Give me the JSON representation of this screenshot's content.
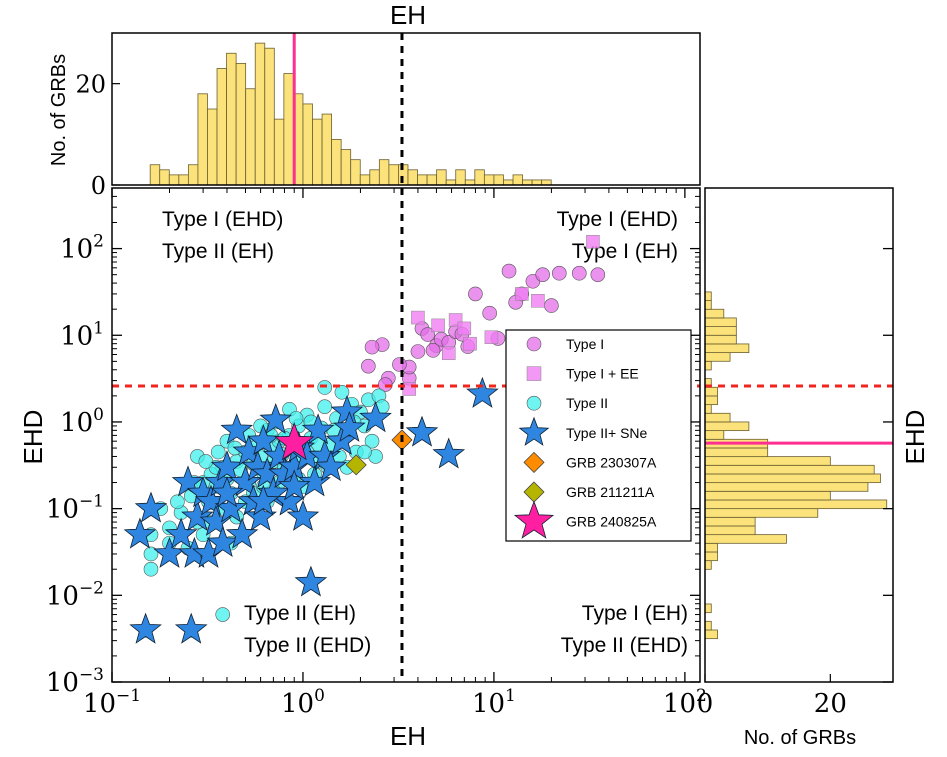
{
  "chart_data": {
    "type": "scatter",
    "title": "EH",
    "xlabel": "EH",
    "ylabel": "EHD",
    "xscale": "log",
    "yscale": "log",
    "xlim": [
      0.1,
      120
    ],
    "ylim": [
      0.001,
      500
    ],
    "x_ticks": [
      {
        "v": 0.1,
        "base": "10",
        "exp": "−1"
      },
      {
        "v": 1,
        "base": "10",
        "exp": "0"
      },
      {
        "v": 10,
        "base": "10",
        "exp": "1"
      },
      {
        "v": 100,
        "base": "10",
        "exp": "2"
      }
    ],
    "y_ticks": [
      {
        "v": 0.001,
        "base": "10",
        "exp": "−3"
      },
      {
        "v": 0.01,
        "base": "10",
        "exp": "−2"
      },
      {
        "v": 0.1,
        "base": "10",
        "exp": "−1"
      },
      {
        "v": 1,
        "base": "10",
        "exp": "0"
      },
      {
        "v": 10,
        "base": "10",
        "exp": "1"
      },
      {
        "v": 100,
        "base": "10",
        "exp": "2"
      }
    ],
    "thresholds": {
      "eh": 3.3,
      "ehd": 2.6,
      "grb240825a_eh": 0.9,
      "grb240825a_ehd": 0.57
    },
    "quadrant_labels": [
      {
        "id": "tl",
        "lines": [
          "Type I (EHD)",
          "Type II (EH)"
        ]
      },
      {
        "id": "tr",
        "lines": [
          "Type I (EHD)",
          "Type I (EH)"
        ]
      },
      {
        "id": "bl",
        "lines": [
          "Type II (EH)",
          "Type II (EHD)"
        ]
      },
      {
        "id": "br",
        "lines": [
          "Type I (EH)",
          "Type II (EHD)"
        ]
      }
    ],
    "series": [
      {
        "name": "Type I",
        "marker": "circle",
        "color": "#e36ee8",
        "points": [
          [
            3.6,
            3.2
          ],
          [
            4.2,
            12
          ],
          [
            4.5,
            10.2
          ],
          [
            5.0,
            7.6
          ],
          [
            5.3,
            9.0
          ],
          [
            5.8,
            8.3
          ],
          [
            6.3,
            11
          ],
          [
            6.8,
            10.3
          ],
          [
            7.3,
            7.4
          ],
          [
            8.0,
            30
          ],
          [
            9.5,
            18
          ],
          [
            10.5,
            9.2
          ],
          [
            12,
            55
          ],
          [
            14,
            30
          ],
          [
            16,
            42
          ],
          [
            18,
            50
          ],
          [
            22,
            52
          ],
          [
            28,
            52
          ],
          [
            35,
            50
          ],
          [
            20,
            22
          ],
          [
            13,
            24
          ],
          [
            4.0,
            6.5
          ],
          [
            3.6,
            4.3
          ],
          [
            3.2,
            4.6
          ],
          [
            2.8,
            3.2
          ],
          [
            2.6,
            7.8
          ],
          [
            2.3,
            7.3
          ],
          [
            2.2,
            4.4
          ],
          [
            2.7,
            2.7
          ],
          [
            4.8,
            6.7
          ]
        ]
      },
      {
        "name": "Type I + EE",
        "marker": "square",
        "color": "#f07ef2",
        "points": [
          [
            33,
            120
          ],
          [
            4.0,
            16
          ],
          [
            5.1,
            13
          ],
          [
            5.8,
            6.2
          ],
          [
            6.3,
            15
          ],
          [
            7.0,
            12
          ],
          [
            7.5,
            8.0
          ],
          [
            9.7,
            9.5
          ],
          [
            17,
            25
          ],
          [
            14,
            30
          ],
          [
            3.6,
            2.4
          ]
        ]
      },
      {
        "name": "Type II",
        "marker": "circle",
        "color": "#40f0ee",
        "points": [
          [
            0.16,
            0.05
          ],
          [
            0.16,
            0.03
          ],
          [
            0.16,
            0.02
          ],
          [
            0.2,
            0.06
          ],
          [
            0.23,
            0.09
          ],
          [
            0.26,
            0.14
          ],
          [
            0.28,
            0.07
          ],
          [
            0.3,
            0.2
          ],
          [
            0.32,
            0.12
          ],
          [
            0.33,
            0.25
          ],
          [
            0.35,
            0.18
          ],
          [
            0.37,
            0.1
          ],
          [
            0.38,
            0.3
          ],
          [
            0.4,
            0.22
          ],
          [
            0.42,
            0.15
          ],
          [
            0.45,
            0.35
          ],
          [
            0.47,
            0.28
          ],
          [
            0.5,
            0.45
          ],
          [
            0.52,
            0.2
          ],
          [
            0.55,
            0.33
          ],
          [
            0.58,
            0.55
          ],
          [
            0.6,
            0.4
          ],
          [
            0.62,
            0.26
          ],
          [
            0.65,
            0.8
          ],
          [
            0.68,
            0.5
          ],
          [
            0.7,
            0.35
          ],
          [
            0.72,
            1.0
          ],
          [
            0.75,
            0.6
          ],
          [
            0.78,
            0.42
          ],
          [
            0.8,
            0.3
          ],
          [
            0.85,
            0.7
          ],
          [
            0.9,
            0.5
          ],
          [
            0.95,
            0.9
          ],
          [
            1.0,
            0.4
          ],
          [
            1.05,
            1.2
          ],
          [
            1.1,
            0.65
          ],
          [
            1.2,
            0.35
          ],
          [
            1.25,
            0.85
          ],
          [
            1.3,
            1.5
          ],
          [
            1.4,
            0.55
          ],
          [
            1.5,
            1.1
          ],
          [
            1.55,
            0.4
          ],
          [
            1.6,
            2.2
          ],
          [
            1.7,
            0.7
          ],
          [
            1.8,
            1.6
          ],
          [
            1.9,
            0.45
          ],
          [
            2.0,
            1.3
          ],
          [
            2.1,
            0.9
          ],
          [
            2.2,
            1.8
          ],
          [
            2.3,
            0.6
          ],
          [
            2.5,
            2.0
          ],
          [
            2.6,
            1.5
          ],
          [
            1.3,
            2.5
          ],
          [
            0.38,
            0.006
          ],
          [
            0.22,
            0.12
          ],
          [
            0.3,
            0.05
          ],
          [
            0.45,
            0.08
          ],
          [
            0.55,
            0.15
          ],
          [
            0.65,
            0.12
          ],
          [
            0.75,
            0.2
          ],
          [
            0.95,
            0.22
          ],
          [
            1.15,
            0.25
          ],
          [
            0.28,
            0.4
          ],
          [
            0.25,
            0.035
          ],
          [
            0.2,
            0.04
          ],
          [
            0.18,
            0.1
          ],
          [
            0.4,
            0.6
          ],
          [
            0.52,
            0.7
          ],
          [
            0.6,
            0.9
          ],
          [
            1.7,
            0.3
          ],
          [
            2.4,
            0.4
          ],
          [
            0.85,
            1.4
          ],
          [
            1.0,
            0.18
          ],
          [
            0.35,
            0.3
          ],
          [
            0.33,
            0.07
          ],
          [
            0.44,
            0.5
          ],
          [
            0.5,
            0.12
          ],
          [
            0.7,
            0.16
          ],
          [
            0.88,
            0.3
          ],
          [
            1.2,
            0.55
          ],
          [
            1.45,
            0.8
          ],
          [
            1.85,
            1.0
          ],
          [
            0.62,
            0.18
          ],
          [
            0.42,
            0.04
          ],
          [
            0.36,
            0.45
          ],
          [
            2.1,
            0.45
          ],
          [
            0.8,
            0.65
          ],
          [
            1.1,
            1.0
          ],
          [
            1.3,
            0.4
          ],
          [
            1.6,
            0.6
          ],
          [
            0.27,
            0.2
          ],
          [
            0.31,
            0.35
          ],
          [
            0.58,
            0.3
          ],
          [
            0.68,
            0.7
          ],
          [
            0.92,
            1.1
          ],
          [
            1.05,
            0.45
          ],
          [
            1.35,
            0.3
          ]
        ]
      },
      {
        "name": "Type II+ SNe",
        "marker": "star",
        "color": "#2e86e0",
        "points": [
          [
            0.14,
            0.05
          ],
          [
            0.16,
            0.1
          ],
          [
            0.15,
            0.004
          ],
          [
            0.2,
            0.03
          ],
          [
            0.23,
            0.05
          ],
          [
            0.25,
            0.2
          ],
          [
            0.26,
            0.004
          ],
          [
            0.27,
            0.03
          ],
          [
            0.28,
            0.08
          ],
          [
            0.3,
            0.15
          ],
          [
            0.32,
            0.03
          ],
          [
            0.33,
            0.12
          ],
          [
            0.35,
            0.07
          ],
          [
            0.37,
            0.2
          ],
          [
            0.38,
            0.04
          ],
          [
            0.4,
            0.3
          ],
          [
            0.42,
            0.1
          ],
          [
            0.45,
            0.8
          ],
          [
            0.48,
            0.05
          ],
          [
            0.5,
            0.2
          ],
          [
            0.52,
            0.45
          ],
          [
            0.55,
            0.12
          ],
          [
            0.58,
            0.3
          ],
          [
            0.6,
            0.08
          ],
          [
            0.62,
            0.6
          ],
          [
            0.65,
            0.25
          ],
          [
            0.7,
            0.15
          ],
          [
            0.72,
            1.05
          ],
          [
            0.75,
            0.4
          ],
          [
            0.8,
            0.25
          ],
          [
            0.85,
            0.12
          ],
          [
            0.9,
            0.3
          ],
          [
            0.95,
            0.5
          ],
          [
            1.0,
            0.08
          ],
          [
            1.05,
            0.4
          ],
          [
            1.1,
            0.014
          ],
          [
            1.15,
            0.2
          ],
          [
            1.2,
            0.8
          ],
          [
            1.3,
            0.4
          ],
          [
            1.4,
            0.3
          ],
          [
            1.6,
            0.6
          ],
          [
            1.7,
            1.3
          ],
          [
            1.75,
            0.85
          ],
          [
            2.4,
            1.1
          ],
          [
            4.2,
            0.75
          ],
          [
            5.8,
            0.42
          ],
          [
            8.7,
            2.1
          ],
          [
            0.9,
            0.18
          ],
          [
            0.62,
            0.12
          ],
          [
            0.4,
            0.15
          ]
        ]
      },
      {
        "name": "GRB 230307A",
        "marker": "diamond",
        "color": "#ff8c00",
        "points": [
          [
            3.3,
            0.62
          ]
        ]
      },
      {
        "name": "GRB 211211A",
        "marker": "diamond",
        "color": "#b5b500",
        "points": [
          [
            1.9,
            0.32
          ]
        ]
      },
      {
        "name": "GRB 240825A",
        "marker": "star",
        "color": "#ff1fa0",
        "points": [
          [
            0.9,
            0.57
          ]
        ]
      }
    ],
    "top_hist": {
      "ylabel": "No. of GRBs",
      "yticks": [
        0,
        20
      ],
      "ymax": 30,
      "bins_log10_start": -0.8,
      "bin_width_log10": 0.05,
      "counts": [
        4,
        3,
        2,
        2,
        4,
        18,
        15,
        23,
        26,
        24,
        19,
        28,
        27,
        13,
        22,
        18,
        16,
        13,
        14,
        9,
        7,
        5,
        2,
        3,
        5,
        4,
        4,
        3,
        2,
        2,
        3,
        1,
        3,
        1,
        3,
        2,
        2,
        1,
        2,
        1,
        1,
        1
      ]
    },
    "right_hist": {
      "xlabel": "No. of GRBs",
      "xticks": [
        0,
        20
      ],
      "xmax": 30,
      "bins_log10_start": -2.5,
      "bin_width_log10": 0.1,
      "counts": [
        2,
        1,
        0,
        1,
        0,
        0,
        0,
        0,
        1,
        2,
        2,
        13,
        8,
        8,
        18,
        29,
        20,
        26,
        28,
        27,
        20,
        10,
        10,
        3,
        7,
        4,
        1,
        2,
        2,
        1,
        0,
        1,
        4,
        7,
        5,
        5,
        5,
        3,
        1,
        1
      ]
    }
  }
}
